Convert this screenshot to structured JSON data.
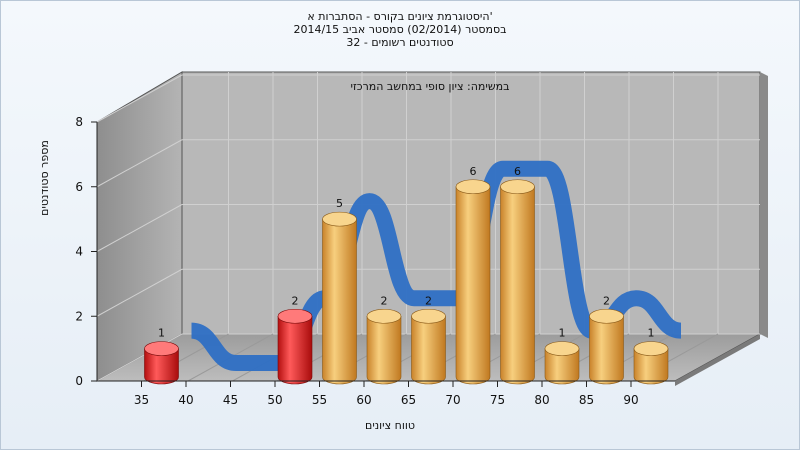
{
  "chart_data": {
    "type": "bar",
    "title_lines": [
      "היסטוגרמת ציונים בקורס - הסתברות א'",
      "בסמסטר (02/2014) סמסטר אביב 2014/15",
      "32 - סטודנטים רשומים"
    ],
    "subtitle": "במשימה: ציון סופי במחשב המרכזי",
    "xlabel": "טווח ציונים",
    "ylabel": "מספר סטודנטים",
    "categories": [
      "35",
      "40",
      "45",
      "50",
      "55",
      "60",
      "65",
      "70",
      "75",
      "80",
      "85",
      "90"
    ],
    "values": [
      1,
      0,
      0,
      2,
      5,
      2,
      2,
      6,
      6,
      1,
      2,
      1
    ],
    "bar_colors": [
      "#e02020",
      null,
      null,
      "#e02020",
      "#eaa640",
      "#eaa640",
      "#eaa640",
      "#eaa640",
      "#eaa640",
      "#eaa640",
      "#eaa640",
      "#eaa640"
    ],
    "data_labels": [
      "1",
      "",
      "",
      "2",
      "5",
      "2",
      "2",
      "6",
      "6",
      "1",
      "2",
      "1"
    ],
    "ylim": [
      0,
      8
    ],
    "yticks": [
      0,
      2,
      4,
      6,
      8
    ],
    "grid": true,
    "curve_color": "#2e6fc4"
  }
}
